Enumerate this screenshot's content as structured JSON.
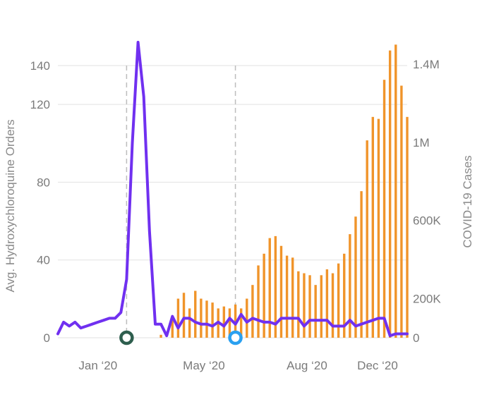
{
  "chart_data": {
    "type": "bar",
    "x_ticks": [
      "Jan ‘20",
      "May ‘20",
      "Aug ‘20",
      "Dec ‘20"
    ],
    "y_left": {
      "label": "Avg. Hydroxychloroquine Orders",
      "ticks": [
        "0",
        "40",
        "80",
        "120",
        "140"
      ],
      "ylim": [
        0,
        152
      ]
    },
    "y_right": {
      "label": "COVID-19 Cases",
      "ticks": [
        "0",
        "200K",
        "600K",
        "1M",
        "1.4M"
      ],
      "ylim": [
        0,
        1520000
      ]
    },
    "grid": true,
    "colors": {
      "bars": "#f0942a",
      "line": "#7030f0",
      "marker_dark": "#2e5e4e",
      "marker_blue": "#2aa0f0",
      "dashed": "#bdbdbd"
    },
    "series": [
      {
        "type": "bar",
        "axis": "right",
        "name": "",
        "values": [
          0,
          0,
          0,
          0,
          0,
          0,
          0,
          0,
          0,
          0,
          0,
          0,
          0,
          0,
          0,
          0,
          0,
          0,
          15000,
          0,
          100000,
          200000,
          230000,
          150000,
          240000,
          200000,
          190000,
          180000,
          150000,
          160000,
          150000,
          170000,
          150000,
          200000,
          270000,
          370000,
          430000,
          510000,
          520000,
          470000,
          420000,
          410000,
          340000,
          330000,
          320000,
          270000,
          320000,
          350000,
          330000,
          380000,
          430000,
          530000,
          620000,
          750000,
          1010000,
          1130000,
          1120000,
          1320000,
          1470000,
          1500000,
          1290000,
          1130000
        ]
      },
      {
        "type": "line",
        "axis": "left",
        "name": "",
        "values": [
          2,
          8,
          6,
          8,
          5,
          6,
          7,
          8,
          9,
          10,
          10,
          13,
          30,
          100,
          152,
          124,
          55,
          7,
          7,
          1,
          11,
          5,
          10,
          10,
          8,
          7,
          7,
          6,
          8,
          6,
          10,
          7,
          12,
          8,
          10,
          9,
          8,
          8,
          7,
          10,
          10,
          10,
          10,
          6,
          9,
          9,
          9,
          9,
          6,
          6,
          6,
          9,
          6,
          7,
          8,
          9,
          10,
          10,
          1,
          2,
          2,
          2
        ]
      }
    ],
    "markers": [
      {
        "name": "",
        "x_index": 12,
        "y": 0
      },
      {
        "name": "",
        "x_index": 31,
        "y": 0
      }
    ],
    "reference_lines": [
      12,
      31
    ]
  }
}
